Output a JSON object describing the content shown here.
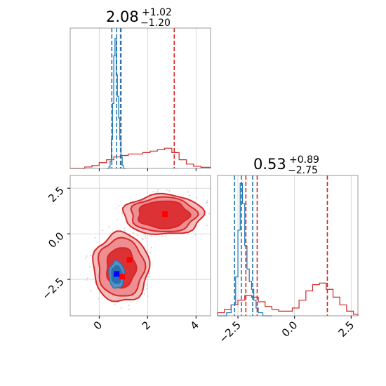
{
  "colors": {
    "red": "#d62728",
    "blue": "#1f77b4",
    "marker_blue": "#0000ff",
    "marker_red": "#ff0000"
  },
  "titles": {
    "x": {
      "value": "2.08",
      "plus": "+1.02",
      "minus": "−1.20"
    },
    "y": {
      "value": "0.53",
      "plus": "+0.89",
      "minus": "−2.75"
    }
  },
  "chart_data": [
    {
      "type": "histogram",
      "panel": "marginal-x",
      "xlim": [
        -1.2,
        4.6
      ],
      "x_ticks": [
        0,
        2,
        4
      ],
      "series": [
        {
          "color": "red",
          "bins": [
            -1.2,
            -0.6,
            -0.3,
            0.0,
            0.3,
            0.6,
            0.9,
            1.2,
            1.5,
            1.8,
            2.1,
            2.4,
            2.7,
            3.0,
            3.3,
            3.6,
            3.9,
            4.2,
            4.6
          ],
          "heights": [
            0.0,
            0.01,
            0.02,
            0.04,
            0.06,
            0.08,
            0.09,
            0.1,
            0.1,
            0.11,
            0.12,
            0.13,
            0.14,
            0.11,
            0.06,
            0.03,
            0.015,
            0.008
          ]
        },
        {
          "color": "blue",
          "bins": [
            0.3,
            0.4,
            0.45,
            0.5,
            0.55,
            0.6,
            0.65,
            0.7,
            0.75,
            0.8,
            0.85,
            0.9,
            0.95,
            1.0,
            1.1
          ],
          "heights": [
            0.0,
            0.01,
            0.05,
            0.2,
            0.45,
            0.78,
            0.9,
            0.65,
            0.5,
            0.35,
            0.2,
            0.08,
            0.02,
            0.0
          ]
        }
      ],
      "vlines": {
        "red": [
          0.88,
          0.9,
          3.1
        ],
        "blue": [
          0.52,
          0.72,
          0.88
        ]
      }
    },
    {
      "type": "histogram",
      "panel": "marginal-y",
      "xlim": [
        -3.4,
        2.8
      ],
      "x_ticks": [
        -2.5,
        0.0,
        2.5
      ],
      "x_tick_labels": [
        "−2.5",
        "0.0",
        "2.5"
      ],
      "series": [
        {
          "color": "red",
          "bins": [
            -3.4,
            -3.1,
            -2.8,
            -2.5,
            -2.2,
            -1.9,
            -1.6,
            -1.3,
            -1.0,
            -0.7,
            -0.4,
            -0.1,
            0.2,
            0.5,
            0.8,
            1.1,
            1.4,
            1.7,
            2.0,
            2.3,
            2.6,
            2.8
          ],
          "heights": [
            0.02,
            0.04,
            0.07,
            0.1,
            0.13,
            0.12,
            0.09,
            0.06,
            0.04,
            0.03,
            0.03,
            0.05,
            0.1,
            0.16,
            0.2,
            0.21,
            0.17,
            0.12,
            0.07,
            0.03,
            0.01
          ]
        },
        {
          "color": "blue",
          "bins": [
            -3.4,
            -3.0,
            -2.8,
            -2.6,
            -2.5,
            -2.4,
            -2.3,
            -2.2,
            -2.1,
            -2.0,
            -1.9,
            -1.8,
            -1.7,
            -1.6,
            -1.4,
            -1.0
          ],
          "heights": [
            0.0,
            0.02,
            0.07,
            0.25,
            0.55,
            0.85,
            0.72,
            0.45,
            0.3,
            0.22,
            0.17,
            0.1,
            0.05,
            0.02,
            0.0
          ]
        }
      ],
      "vlines": {
        "red": [
          -2.15,
          -1.65,
          1.45
        ],
        "blue": [
          -2.65,
          -2.35,
          -1.85
        ]
      }
    },
    {
      "type": "contour",
      "panel": "joint",
      "xlim": [
        -1.2,
        4.6
      ],
      "ylim": [
        -4.5,
        3.2
      ],
      "x_ticks": [
        0,
        2,
        4
      ],
      "y_ticks": [
        -2.5,
        0.0,
        2.5
      ],
      "y_tick_labels": [
        "−2.5",
        "0.0",
        "2.5"
      ],
      "clusters": [
        {
          "color": "red",
          "center": [
            2.65,
            1.05
          ],
          "radii": [
            [
              1.65,
              1.1
            ],
            [
              1.35,
              0.95
            ],
            [
              1.05,
              0.75
            ]
          ]
        },
        {
          "color": "red",
          "center": [
            0.9,
            -1.85
          ],
          "radii": [
            [
              1.15,
              1.9
            ],
            [
              0.95,
              1.6
            ],
            [
              0.6,
              1.1
            ]
          ]
        },
        {
          "color": "blue",
          "center": [
            0.72,
            -2.25
          ],
          "radii": [
            [
              0.32,
              0.75
            ],
            [
              0.22,
              0.5
            ]
          ]
        }
      ],
      "markers": [
        {
          "color": "marker_red",
          "x": 2.72,
          "y": 1.08
        },
        {
          "color": "marker_red",
          "x": 1.25,
          "y": -1.43
        },
        {
          "color": "marker_red",
          "x": 0.95,
          "y": -2.35
        },
        {
          "color": "marker_blue",
          "x": 0.72,
          "y": -2.2
        }
      ]
    }
  ]
}
